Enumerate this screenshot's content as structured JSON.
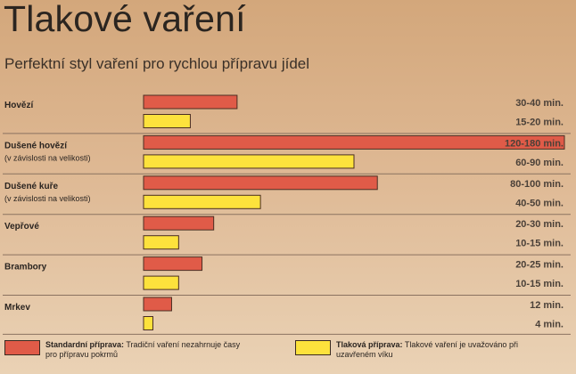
{
  "title": "Tlakové vaření",
  "subtitle": "Perfektní styl vaření pro rychlou přípravu jídel",
  "colors": {
    "standard": "#e05b48",
    "pressure": "#fde23c",
    "bar_border": "#4a2e22",
    "row_line": "#8a7260",
    "label": "#2a2420",
    "value": "#4a4038"
  },
  "chart_data": {
    "type": "bar",
    "orientation": "horizontal",
    "xlim": [
      0,
      180
    ],
    "categories": [
      {
        "name": "Hovězí",
        "note": ""
      },
      {
        "name": "Dušené hovězí",
        "note": "(v závislosti na velikosti)"
      },
      {
        "name": "Dušené kuře",
        "note": "(v závislosti na velikosti)"
      },
      {
        "name": "Vepřové",
        "note": ""
      },
      {
        "name": "Brambory",
        "note": ""
      },
      {
        "name": "Mrkev",
        "note": ""
      }
    ],
    "series": [
      {
        "name": "Standardní příprava",
        "color": "#e05b48",
        "values": [
          [
            30,
            40
          ],
          [
            120,
            180
          ],
          [
            80,
            100
          ],
          [
            20,
            30
          ],
          [
            20,
            25
          ],
          [
            12,
            12
          ]
        ],
        "labels": [
          "30-40 min.",
          "120-180 min.",
          "80-100 min.",
          "20-30 min.",
          "20-25 min.",
          "12 min."
        ]
      },
      {
        "name": "Tlaková příprava",
        "color": "#fde23c",
        "values": [
          [
            15,
            20
          ],
          [
            60,
            90
          ],
          [
            40,
            50
          ],
          [
            10,
            15
          ],
          [
            10,
            15
          ],
          [
            4,
            4
          ]
        ],
        "labels": [
          "15-20 min.",
          "60-90 min.",
          "40-50 min.",
          "10-15 min.",
          "10-15 min.",
          "4 min."
        ]
      }
    ]
  },
  "legend": [
    {
      "bold": "Standardní příprava:",
      "text": "Tradiční vaření nezahrnuje časy pro přípravu pokrmů"
    },
    {
      "bold": "Tlaková příprava:",
      "text": "Tlakové vaření je uvažováno při uzavřeném víku"
    }
  ]
}
